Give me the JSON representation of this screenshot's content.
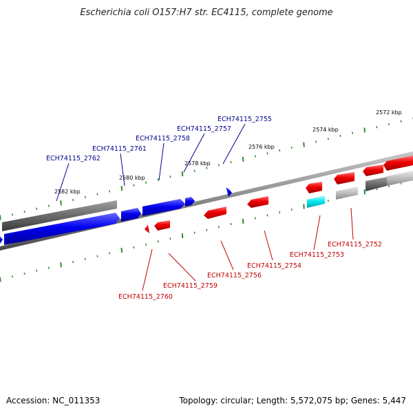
{
  "title": "Escherichia coli O157:H7 str. EC4115, complete genome",
  "footer": {
    "accession": "Accession: NC_011353",
    "summary": "Topology: circular; Length: 5,572,075 bp; Genes: 5,447"
  },
  "colors": {
    "forward_gene": "#0000ee",
    "reverse_gene": "#ee0000",
    "forward_label": "#00008b",
    "reverse_label": "#c00000",
    "tick": "#2e8b2e",
    "backbone": "#888888",
    "cyan_gene": "#00e5ee"
  },
  "ticks": [
    {
      "label": "2582 kbp"
    },
    {
      "label": "2580 kbp"
    },
    {
      "label": "2578 kbp"
    },
    {
      "label": "2576 kbp"
    },
    {
      "label": "2574 kbp"
    },
    {
      "label": "2572 kbp"
    }
  ],
  "forward_labels": [
    {
      "label": "ECH74115_2762"
    },
    {
      "label": "ECH74115_2761"
    },
    {
      "label": "ECH74115_2758"
    },
    {
      "label": "ECH74115_2757"
    },
    {
      "label": "ECH74115_2755"
    }
  ],
  "reverse_labels": [
    {
      "label": "ECH74115_2760"
    },
    {
      "label": "ECH74115_2759"
    },
    {
      "label": "ECH74115_2756"
    },
    {
      "label": "ECH74115_2754"
    },
    {
      "label": "ECH74115_2753"
    },
    {
      "label": "ECH74115_2752"
    }
  ]
}
